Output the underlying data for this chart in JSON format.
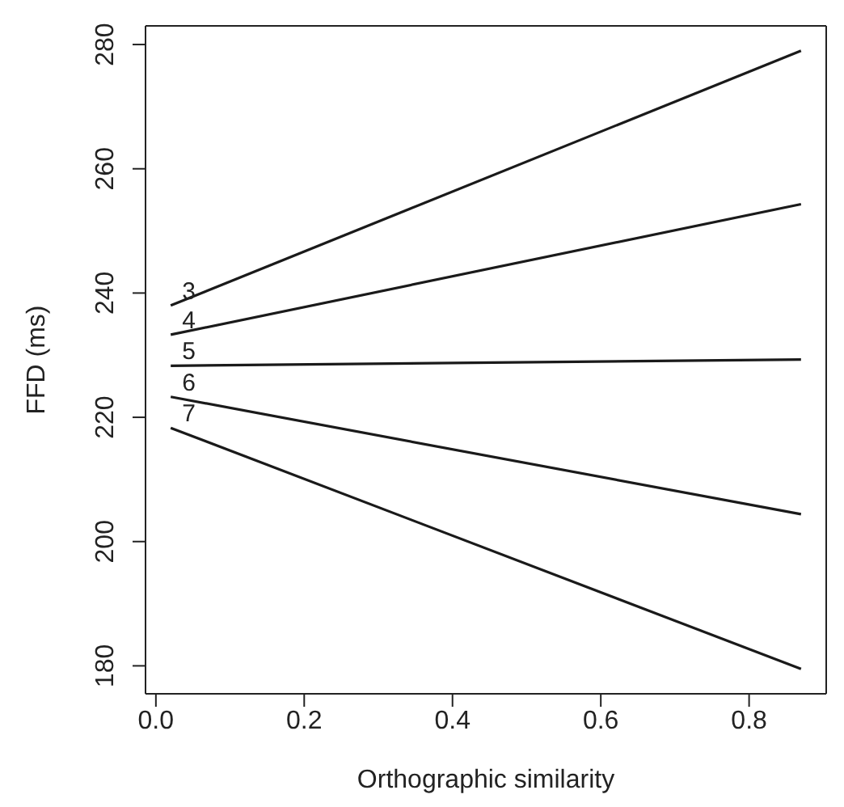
{
  "chart_data": {
    "type": "line",
    "xlabel": "Orthographic similarity",
    "ylabel": "FFD (ms)",
    "xlim": [
      -0.014,
      0.904
    ],
    "ylim": [
      175.5,
      283
    ],
    "xticks": [
      {
        "value": 0,
        "label": "0.0"
      },
      0.2,
      0.4,
      0.6,
      0.8
    ],
    "yticks": [
      180,
      200,
      220,
      240,
      260,
      280
    ],
    "x": [
      0.02,
      0.87
    ],
    "legend": false,
    "marker": "none",
    "line_style": "solid",
    "series": [
      {
        "name": "3",
        "color": "#1a1a1a",
        "values": [
          238,
          279
        ]
      },
      {
        "name": "4",
        "color": "#1a1a1a",
        "values": [
          233.3,
          254.3
        ]
      },
      {
        "name": "5",
        "color": "#1a1a1a",
        "values": [
          228.3,
          229.3
        ]
      },
      {
        "name": "6",
        "color": "#1a1a1a",
        "values": [
          223.3,
          204.4
        ]
      },
      {
        "name": "7",
        "color": "#1a1a1a",
        "values": [
          218.3,
          179.5
        ]
      }
    ]
  }
}
